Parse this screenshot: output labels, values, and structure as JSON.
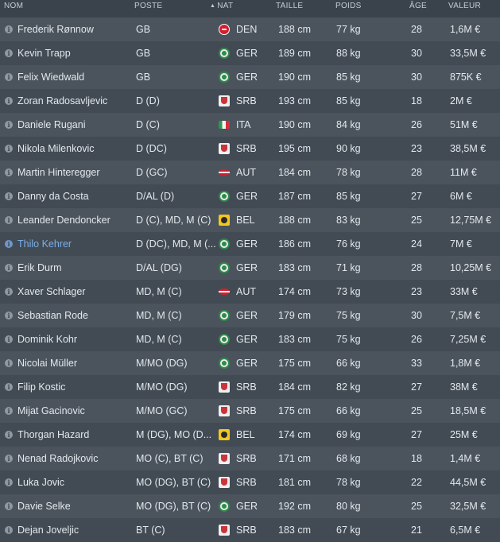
{
  "headers": {
    "nom": "NOM",
    "poste": "POSTE",
    "nat": "NAT",
    "taille": "TAILLE",
    "poids": "POIDS",
    "age": "ÂGE",
    "valeur": "VALEUR"
  },
  "sort": {
    "column": "nat",
    "direction": "ascending",
    "indicator": "▲"
  },
  "info_icon": "i",
  "players": [
    {
      "name": "Frederik Rønnow",
      "position": "GB",
      "flag": "DEN",
      "nat": "DEN",
      "height": "188 cm",
      "weight": "77 kg",
      "age": "28",
      "value": "1,6M €"
    },
    {
      "name": "Kevin Trapp",
      "position": "GB",
      "flag": "GER",
      "nat": "GER",
      "height": "189 cm",
      "weight": "88 kg",
      "age": "30",
      "value": "33,5M €"
    },
    {
      "name": "Felix Wiedwald",
      "position": "GB",
      "flag": "GER",
      "nat": "GER",
      "height": "190 cm",
      "weight": "85 kg",
      "age": "30",
      "value": "875K €"
    },
    {
      "name": "Zoran Radosavljevic",
      "position": "D (D)",
      "flag": "SRB",
      "nat": "SRB",
      "height": "193 cm",
      "weight": "85 kg",
      "age": "18",
      "value": "2M €"
    },
    {
      "name": "Daniele Rugani",
      "position": "D (C)",
      "flag": "ITA",
      "nat": "ITA",
      "height": "190 cm",
      "weight": "84 kg",
      "age": "26",
      "value": "51M €"
    },
    {
      "name": "Nikola Milenkovic",
      "position": "D (DC)",
      "flag": "SRB",
      "nat": "SRB",
      "height": "195 cm",
      "weight": "90 kg",
      "age": "23",
      "value": "38,5M €"
    },
    {
      "name": "Martin Hinteregger",
      "position": "D (GC)",
      "flag": "AUT",
      "nat": "AUT",
      "height": "184 cm",
      "weight": "78 kg",
      "age": "28",
      "value": "11M €"
    },
    {
      "name": "Danny da Costa",
      "position": "D/AL (D)",
      "flag": "GER",
      "nat": "GER",
      "height": "187 cm",
      "weight": "85 kg",
      "age": "27",
      "value": "6M €"
    },
    {
      "name": "Leander Dendoncker",
      "position": "D (C), MD, M (C)",
      "flag": "BEL",
      "nat": "BEL",
      "height": "188 cm",
      "weight": "83 kg",
      "age": "25",
      "value": "12,75M €"
    },
    {
      "name": "Thilo Kehrer",
      "position": "D (DC), MD, M (...",
      "flag": "GER",
      "nat": "GER",
      "height": "186 cm",
      "weight": "76 kg",
      "age": "24",
      "value": "7M €",
      "highlighted": "yes"
    },
    {
      "name": "Erik Durm",
      "position": "D/AL (DG)",
      "flag": "GER",
      "nat": "GER",
      "height": "183 cm",
      "weight": "71 kg",
      "age": "28",
      "value": "10,25M €"
    },
    {
      "name": "Xaver Schlager",
      "position": "MD, M (C)",
      "flag": "AUT",
      "nat": "AUT",
      "height": "174 cm",
      "weight": "73 kg",
      "age": "23",
      "value": "33M €"
    },
    {
      "name": "Sebastian Rode",
      "position": "MD, M (C)",
      "flag": "GER",
      "nat": "GER",
      "height": "179 cm",
      "weight": "75 kg",
      "age": "30",
      "value": "7,5M €"
    },
    {
      "name": "Dominik Kohr",
      "position": "MD, M (C)",
      "flag": "GER",
      "nat": "GER",
      "height": "183 cm",
      "weight": "75 kg",
      "age": "26",
      "value": "7,25M €"
    },
    {
      "name": "Nicolai Müller",
      "position": "M/MO (DG)",
      "flag": "GER",
      "nat": "GER",
      "height": "175 cm",
      "weight": "66 kg",
      "age": "33",
      "value": "1,8M €"
    },
    {
      "name": "Filip Kostic",
      "position": "M/MO (DG)",
      "flag": "SRB",
      "nat": "SRB",
      "height": "184 cm",
      "weight": "82 kg",
      "age": "27",
      "value": "38M €"
    },
    {
      "name": "Mijat Gacinovic",
      "position": "M/MO (GC)",
      "flag": "SRB",
      "nat": "SRB",
      "height": "175 cm",
      "weight": "66 kg",
      "age": "25",
      "value": "18,5M €"
    },
    {
      "name": "Thorgan Hazard",
      "position": "M (DG), MO (D...",
      "flag": "BEL",
      "nat": "BEL",
      "height": "174 cm",
      "weight": "69 kg",
      "age": "27",
      "value": "25M €"
    },
    {
      "name": "Nenad Radojkovic",
      "position": "MO (C), BT (C)",
      "flag": "SRB",
      "nat": "SRB",
      "height": "171 cm",
      "weight": "68 kg",
      "age": "18",
      "value": "1,4M €"
    },
    {
      "name": "Luka Jovic",
      "position": "MO (DG), BT (C)",
      "flag": "SRB",
      "nat": "SRB",
      "height": "181 cm",
      "weight": "78 kg",
      "age": "22",
      "value": "44,5M €"
    },
    {
      "name": "Davie Selke",
      "position": "MO (DG), BT (C)",
      "flag": "GER",
      "nat": "GER",
      "height": "192 cm",
      "weight": "80 kg",
      "age": "25",
      "value": "32,5M €"
    },
    {
      "name": "Dejan Joveljic",
      "position": "BT (C)",
      "flag": "SRB",
      "nat": "SRB",
      "height": "183 cm",
      "weight": "67 kg",
      "age": "21",
      "value": "6,5M €"
    }
  ]
}
